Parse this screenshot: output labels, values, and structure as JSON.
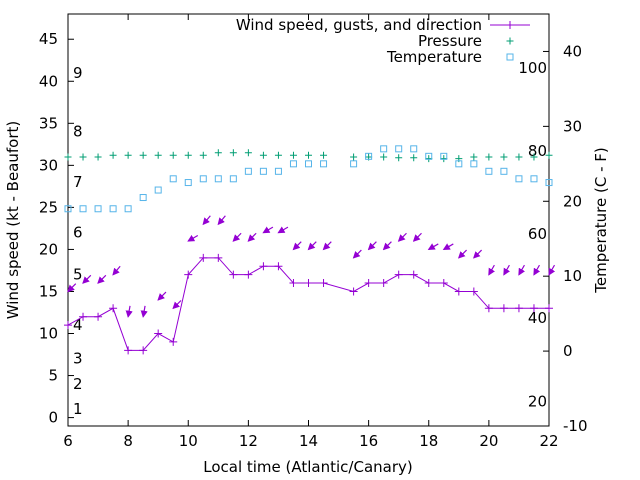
{
  "chart_data": {
    "type": "line",
    "title": "",
    "xlabel": "Local time (Atlantic/Canary)",
    "ylabel": "Wind speed (kt - Beaufort)",
    "y2label": "Temperature (C - F)",
    "xlim": [
      6,
      22
    ],
    "ylim": [
      -1,
      48
    ],
    "y2lim": [
      -10,
      45
    ],
    "x_ticks": [
      6,
      8,
      10,
      12,
      14,
      16,
      18,
      20,
      22
    ],
    "y_ticks": [
      0,
      5,
      10,
      15,
      20,
      25,
      30,
      35,
      40,
      45
    ],
    "y2_ticks": [
      -10,
      0,
      10,
      20,
      30,
      40
    ],
    "beaufort_labels": [
      {
        "label": "1",
        "kt": 1
      },
      {
        "label": "2",
        "kt": 4
      },
      {
        "label": "3",
        "kt": 7
      },
      {
        "label": "4",
        "kt": 11
      },
      {
        "label": "5",
        "kt": 17
      },
      {
        "label": "6",
        "kt": 22
      },
      {
        "label": "7",
        "kt": 28
      },
      {
        "label": "8",
        "kt": 34
      },
      {
        "label": "9",
        "kt": 41
      }
    ],
    "fahrenheit_labels": [
      {
        "label": "20",
        "celsius": -6.7
      },
      {
        "label": "40",
        "celsius": 4.4
      },
      {
        "label": "60",
        "celsius": 15.6
      },
      {
        "label": "80",
        "celsius": 26.7
      },
      {
        "label": "100",
        "celsius": 37.8
      }
    ],
    "legend_position": "top-right",
    "grid": false,
    "series": [
      {
        "name": "Wind speed, gusts, and direction",
        "color": "#9400d3",
        "axis": "left",
        "style": "line-plus",
        "x": [
          6,
          6.5,
          7,
          7.5,
          8,
          8.5,
          9,
          9.5,
          10,
          10.5,
          11,
          11.5,
          12,
          12.5,
          13,
          13.5,
          14,
          14.5,
          15.5,
          16,
          16.5,
          17,
          17.5,
          18,
          18.5,
          19,
          19.5,
          20,
          20.5,
          21,
          21.5,
          22
        ],
        "values": [
          11,
          12,
          12,
          13,
          8,
          8,
          10,
          9,
          17,
          19,
          19,
          17,
          17,
          18,
          18,
          16,
          16,
          16,
          15,
          16,
          16,
          17,
          17,
          16,
          16,
          15,
          15,
          13,
          13,
          13,
          13,
          13
        ],
        "gusts": [
          15,
          16,
          16,
          17,
          12,
          12,
          14,
          13,
          21,
          23,
          23,
          21,
          21,
          22,
          22,
          20,
          20,
          20,
          19,
          20,
          20,
          21,
          21,
          20,
          20,
          19,
          19,
          17,
          17,
          17,
          17,
          17
        ],
        "direction_deg": [
          45,
          45,
          45,
          40,
          10,
          10,
          45,
          45,
          60,
          40,
          40,
          45,
          45,
          60,
          60,
          45,
          45,
          45,
          45,
          45,
          45,
          45,
          45,
          60,
          60,
          45,
          45,
          30,
          30,
          30,
          30,
          30
        ]
      },
      {
        "name": "Pressure",
        "color": "#009e73",
        "axis": "left",
        "style": "plus",
        "x": [
          6,
          6.5,
          7,
          7.5,
          8,
          8.5,
          9,
          9.5,
          10,
          10.5,
          11,
          11.5,
          12,
          12.5,
          13,
          13.5,
          14,
          14.5,
          15.5,
          16,
          16.5,
          17,
          17.5,
          18,
          18.5,
          19,
          19.5,
          20,
          20.5,
          21,
          21.5,
          22
        ],
        "values": [
          31,
          31,
          31,
          31.2,
          31.2,
          31.2,
          31.2,
          31.2,
          31.2,
          31.2,
          31.5,
          31.5,
          31.5,
          31.2,
          31.2,
          31.2,
          31.2,
          31.2,
          31,
          31,
          31,
          30.9,
          30.9,
          30.8,
          30.8,
          30.8,
          31,
          31,
          31,
          31,
          31,
          31.2
        ]
      },
      {
        "name": "Temperature",
        "color": "#56b4e9",
        "axis": "right",
        "style": "square",
        "x": [
          6,
          6.5,
          7,
          7.5,
          8,
          8.5,
          9,
          9.5,
          10,
          10.5,
          11,
          11.5,
          12,
          12.5,
          13,
          13.5,
          14,
          14.5,
          15.5,
          16,
          16.5,
          17,
          17.5,
          18,
          18.5,
          19,
          19.5,
          20,
          20.5,
          21,
          21.5,
          22
        ],
        "values": [
          19,
          19,
          19,
          19,
          19,
          20.5,
          21.5,
          23,
          22.5,
          23,
          23,
          23,
          24,
          24,
          24,
          25,
          25,
          25,
          25,
          26,
          27,
          27,
          27,
          26,
          26,
          25,
          25,
          24,
          24,
          23,
          23,
          22.5
        ]
      }
    ]
  }
}
